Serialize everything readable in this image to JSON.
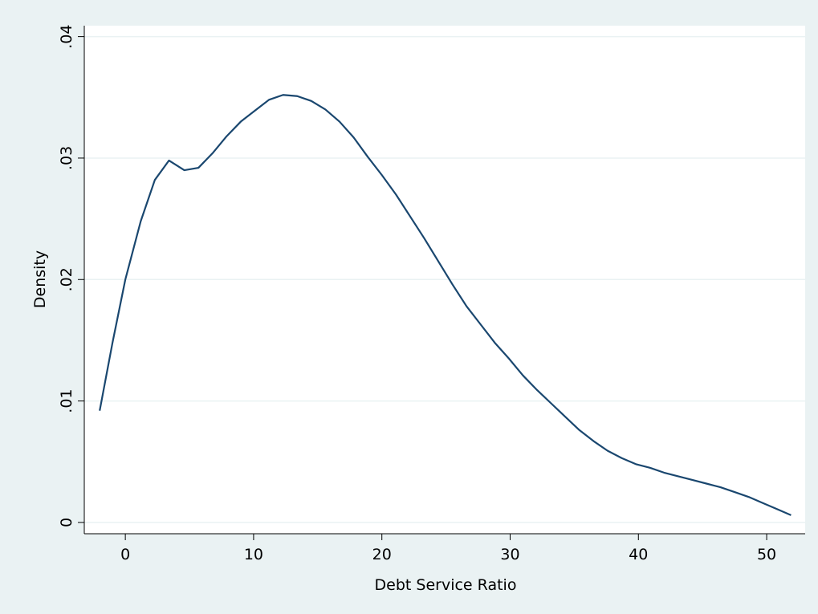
{
  "chart_data": {
    "type": "line",
    "x_label": "Debt Service Ratio",
    "y_label": "Density",
    "x": [
      -2,
      -1,
      0,
      1.2,
      2.3,
      3.4,
      4.6,
      5.7,
      6.8,
      7.9,
      9,
      10.1,
      11.2,
      12.3,
      13.4,
      14.5,
      15.6,
      16.7,
      17.8,
      18.9,
      20,
      21.1,
      22.2,
      23.3,
      24.4,
      25.5,
      26.6,
      27.7,
      28.8,
      29.9,
      31,
      32.1,
      33.2,
      34.3,
      35.4,
      36.5,
      37.6,
      38.7,
      39.8,
      40.9,
      42,
      43.1,
      44.2,
      45.3,
      46.4,
      47.5,
      48.6,
      49.7,
      50.8,
      51.9
    ],
    "series": [
      {
        "color": "#1a476f",
        "values": [
          0.0092,
          0.0148,
          0.02,
          0.0248,
          0.0282,
          0.0298,
          0.029,
          0.0292,
          0.0304,
          0.0318,
          0.033,
          0.0339,
          0.0348,
          0.0352,
          0.0351,
          0.0347,
          0.034,
          0.033,
          0.0317,
          0.0301,
          0.0286,
          0.027,
          0.0252,
          0.0234,
          0.0215,
          0.0196,
          0.0178,
          0.0163,
          0.0148,
          0.0135,
          0.0121,
          0.0109,
          0.0098,
          0.0087,
          0.0076,
          0.0067,
          0.0059,
          0.0053,
          0.0048,
          0.0045,
          0.0041,
          0.0038,
          0.0035,
          0.0032,
          0.0029,
          0.0025,
          0.0021,
          0.0016,
          0.0011,
          0.0006
        ]
      }
    ],
    "xlim": [
      -3.2,
      53
    ],
    "xticks": [
      0,
      10,
      20,
      30,
      40,
      50
    ],
    "ylim": [
      -0.00093,
      0.0409
    ],
    "yticks": [
      0,
      {
        "value": 0.01,
        "label": ".01"
      },
      {
        "value": 0.02,
        "label": ".02"
      },
      {
        "value": 0.03,
        "label": ".03"
      },
      {
        "value": 0.04,
        "label": ".04"
      }
    ],
    "grid": true
  }
}
